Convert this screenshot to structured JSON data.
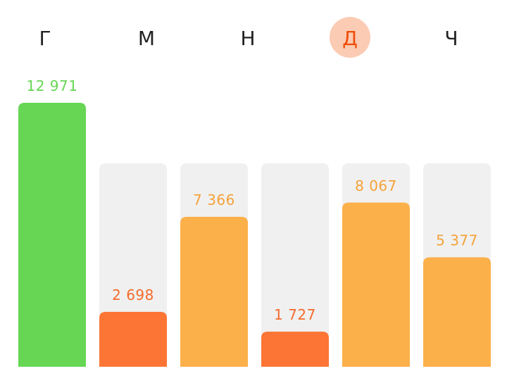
{
  "chart_data": {
    "type": "bar",
    "categories": [
      "Г",
      "М",
      "Н",
      "Д",
      "Ч"
    ],
    "goal_label": "12 971",
    "goal_value": 12971,
    "values": [
      2698,
      7366,
      1727,
      8067,
      5377
    ],
    "value_labels": [
      "2 698",
      "7 366",
      "1 727",
      "8 067",
      "5 377"
    ],
    "ylim": [
      0,
      12971
    ],
    "selected_category": "Д",
    "title": "",
    "xlabel": "",
    "ylabel": ""
  },
  "colors": {
    "goal_bar": "#66d654",
    "goal_text": "#66d654",
    "low_bar": "#fc7535",
    "low_text": "#f46b2c",
    "mid_bar": "#fcb04a",
    "mid_text": "#f5a23a",
    "track": "#f0f0f0",
    "day_text": "#222222",
    "selected_bg": "#fbcbb3",
    "selected_text": "#f04e0c"
  }
}
